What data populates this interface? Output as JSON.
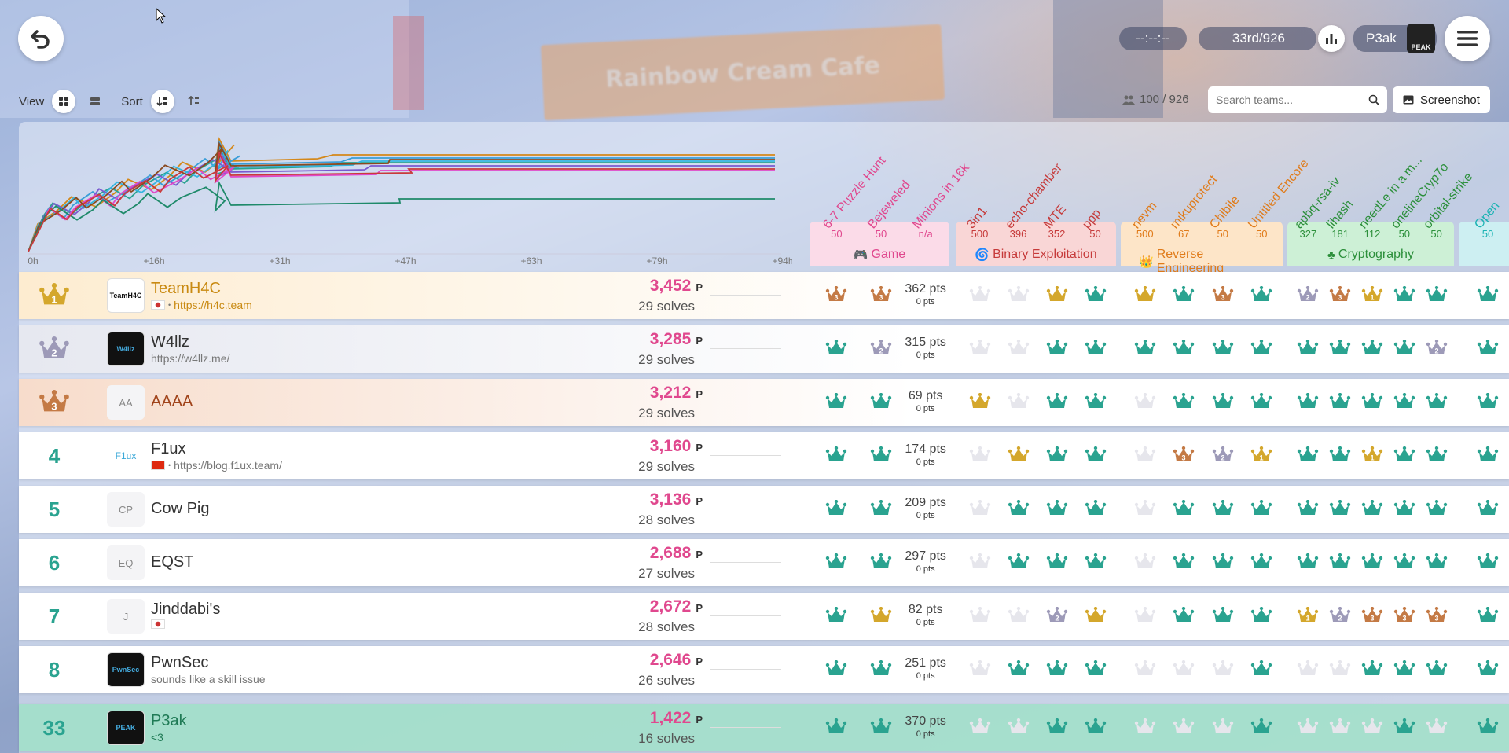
{
  "background_sign": "Rainbow Cream Cafe",
  "header": {
    "timer": "--:--:--",
    "rank": "33rd/926",
    "user_name": "P3ak",
    "avatar_caption": "PEAK"
  },
  "toolbar": {
    "view_label": "View",
    "sort_label": "Sort",
    "team_count": "100 / 926",
    "search_placeholder": "Search teams...",
    "screenshot_label": "Screenshot"
  },
  "graph": {
    "ticks": [
      "0h",
      "+16h",
      "+31h",
      "+47h",
      "+63h",
      "+79h",
      "+94h"
    ]
  },
  "categories": [
    {
      "name": "Game",
      "color": "#e0488e",
      "bg": "#fbdbe8",
      "challenges": [
        {
          "name": "6-7 Puzzle Hunt",
          "pts": "50"
        },
        {
          "name": "Bejeweled",
          "pts": "50"
        },
        {
          "name": "Minions in 16k",
          "pts": "n/a"
        }
      ]
    },
    {
      "name": "Binary Exploitation",
      "color": "#c63a3a",
      "bg": "#f9d6d6",
      "challenges": [
        {
          "name": "3in1",
          "pts": "500"
        },
        {
          "name": "echo-chamber",
          "pts": "396"
        },
        {
          "name": "MTE",
          "pts": "352"
        },
        {
          "name": "ppp",
          "pts": "50"
        }
      ]
    },
    {
      "name": "Reverse Engineering",
      "color": "#e07b1a",
      "bg": "#fde5c8",
      "challenges": [
        {
          "name": "nevm",
          "pts": "500"
        },
        {
          "name": "mikuprotect",
          "pts": "67"
        },
        {
          "name": "Chibile",
          "pts": "50"
        },
        {
          "name": "Untitled Encore",
          "pts": "50"
        }
      ]
    },
    {
      "name": "Cryptography",
      "color": "#2b8f3a",
      "bg": "#cdf0d6",
      "challenges": [
        {
          "name": "apbq-rsa-iv",
          "pts": "327"
        },
        {
          "name": "lihash",
          "pts": "181"
        },
        {
          "name": "needLe in a m...",
          "pts": "112"
        },
        {
          "name": "onelineCryp7o",
          "pts": "50"
        },
        {
          "name": "orbital-strike",
          "pts": "50"
        }
      ]
    },
    {
      "name": "",
      "color": "#1ab3b3",
      "bg": "#cdeff2",
      "challenges": [
        {
          "name": "Open",
          "pts": "50"
        }
      ]
    }
  ],
  "colors": {
    "teal": "#2aa390",
    "gold": "#d4a72c",
    "silver": "#9d9ab8",
    "bronze": "#c47a45",
    "empty": "#e6e6ec"
  },
  "teams": [
    {
      "rank": "1",
      "medal": "gold",
      "name": "TeamH4C",
      "avatar": "TeamH4C",
      "sub": "https://h4c.team",
      "flag": "kr",
      "score": "3,452",
      "unit": "P",
      "solves": "29 solves",
      "game_pts": "362 pts",
      "game_sub": "0 pts",
      "cells": [
        "b3",
        "b3",
        "p",
        "e",
        "e",
        "g",
        "t",
        "g",
        "t",
        "b3",
        "t",
        "s2",
        "b3",
        "g1",
        "t",
        "t",
        "t"
      ]
    },
    {
      "rank": "2",
      "medal": "silver",
      "name": "W4llz",
      "avatar": "W4llz",
      "sub": "https://w4llz.me/",
      "flag": "",
      "score": "3,285",
      "unit": "P",
      "solves": "29 solves",
      "game_pts": "315 pts",
      "game_sub": "0 pts",
      "cells": [
        "t",
        "s2",
        "p",
        "e",
        "e",
        "t",
        "t",
        "t",
        "t",
        "t",
        "t",
        "t",
        "t",
        "t",
        "t",
        "s2",
        "t"
      ]
    },
    {
      "rank": "3",
      "medal": "bronze",
      "name": "AAAA",
      "avatar": "AA",
      "sub": "",
      "flag": "",
      "score": "3,212",
      "unit": "P",
      "solves": "29 solves",
      "game_pts": "69 pts",
      "game_sub": "0 pts",
      "cells": [
        "t",
        "t",
        "p",
        "g",
        "e",
        "t",
        "t",
        "e",
        "t",
        "t",
        "t",
        "t",
        "t",
        "t",
        "t",
        "t",
        "t"
      ]
    },
    {
      "rank": "4",
      "medal": "",
      "name": "F1ux",
      "avatar": "F1ux",
      "sub": "https://blog.f1ux.team/",
      "flag": "cn",
      "score": "3,160",
      "unit": "P",
      "solves": "29 solves",
      "game_pts": "174 pts",
      "game_sub": "0 pts",
      "cells": [
        "t",
        "t",
        "p",
        "e",
        "g",
        "t",
        "t",
        "e",
        "b3",
        "s2",
        "g1",
        "t",
        "t",
        "g1",
        "t",
        "t",
        "t"
      ]
    },
    {
      "rank": "5",
      "medal": "",
      "name": "Cow Pig",
      "avatar": "CP",
      "sub": "",
      "flag": "",
      "score": "3,136",
      "unit": "P",
      "solves": "28 solves",
      "game_pts": "209 pts",
      "game_sub": "0 pts",
      "cells": [
        "t",
        "t",
        "p",
        "e",
        "t",
        "t",
        "t",
        "e",
        "t",
        "t",
        "t",
        "t",
        "t",
        "t",
        "t",
        "t",
        "t"
      ]
    },
    {
      "rank": "6",
      "medal": "",
      "name": "EQST",
      "avatar": "EQ",
      "sub": "",
      "flag": "",
      "score": "2,688",
      "unit": "P",
      "solves": "27 solves",
      "game_pts": "297 pts",
      "game_sub": "0 pts",
      "cells": [
        "t",
        "t",
        "p",
        "e",
        "t",
        "t",
        "t",
        "e",
        "t",
        "t",
        "t",
        "t",
        "t",
        "t",
        "t",
        "t",
        "t"
      ]
    },
    {
      "rank": "7",
      "medal": "",
      "name": "Jinddabi's",
      "avatar": "J",
      "sub": "",
      "flag": "kr",
      "score": "2,672",
      "unit": "P",
      "solves": "28 solves",
      "game_pts": "82 pts",
      "game_sub": "0 pts",
      "cells": [
        "t",
        "g",
        "p",
        "e",
        "e",
        "s2",
        "g",
        "e",
        "t",
        "t",
        "t",
        "g1",
        "s2",
        "b3",
        "b3",
        "b3",
        "t"
      ]
    },
    {
      "rank": "8",
      "medal": "",
      "name": "PwnSec",
      "avatar": "PwnSec",
      "sub": "sounds like a skill issue",
      "flag": "",
      "score": "2,646",
      "unit": "P",
      "solves": "26 solves",
      "game_pts": "251 pts",
      "game_sub": "0 pts",
      "cells": [
        "t",
        "t",
        "p",
        "e",
        "t",
        "t",
        "t",
        "e",
        "e",
        "e",
        "t",
        "e",
        "e",
        "t",
        "t",
        "t",
        "t"
      ]
    },
    {
      "rank": "33",
      "medal": "",
      "name": "P3ak",
      "avatar": "PEAK",
      "sub": "<3",
      "flag": "",
      "score": "1,422",
      "unit": "P",
      "solves": "16 solves",
      "game_pts": "370 pts",
      "game_sub": "0 pts",
      "self": true,
      "cells": [
        "t",
        "t",
        "p",
        "e",
        "e",
        "t",
        "t",
        "e",
        "e",
        "e",
        "t",
        "e",
        "e",
        "e",
        "t",
        "e",
        "t"
      ]
    }
  ]
}
